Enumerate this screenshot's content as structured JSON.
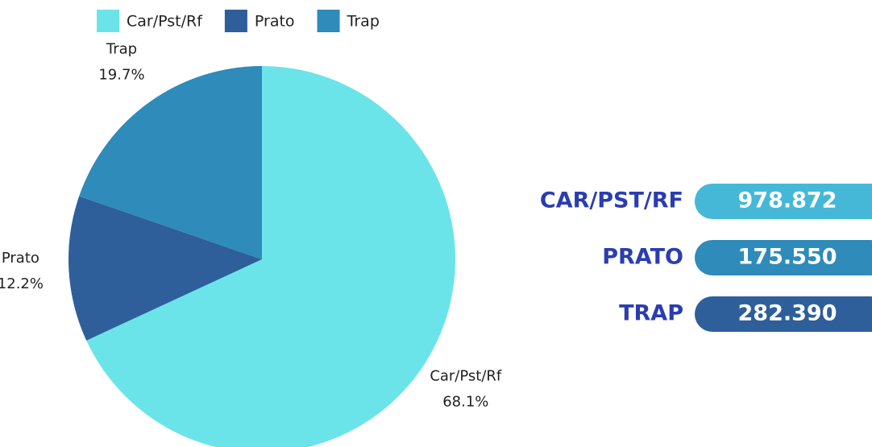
{
  "chart_data": {
    "type": "pie",
    "categories": [
      "Car/Pst/Rf",
      "Prato",
      "Trap"
    ],
    "series": [
      {
        "name": "Share",
        "values": [
          68.1,
          12.2,
          19.7
        ],
        "value_labels": [
          "68.1%",
          "12.2%",
          "19.7%"
        ],
        "colors": [
          "#6be4e9",
          "#2e5f9a",
          "#2e8bba"
        ]
      }
    ],
    "legend": "top"
  },
  "summary": [
    {
      "label": "CAR/PST/RF",
      "value": "978.872",
      "color": "#45b8d8"
    },
    {
      "label": "PRATO",
      "value": "175.550",
      "color": "#2e8bba"
    },
    {
      "label": "TRAP",
      "value": "282.390",
      "color": "#2e5f9a"
    }
  ]
}
